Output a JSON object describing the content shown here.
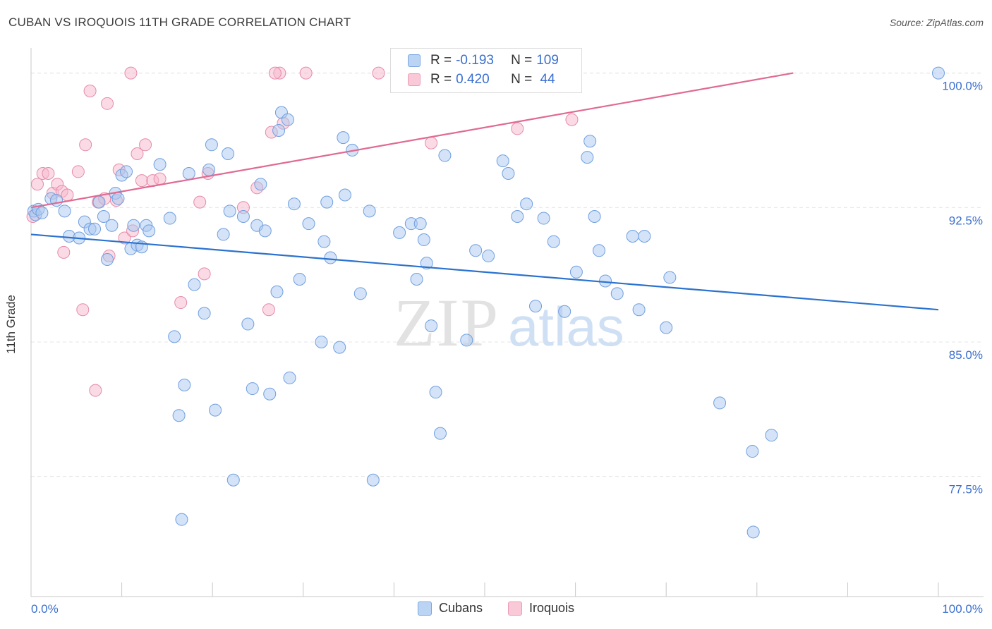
{
  "title": "CUBAN VS IROQUOIS 11TH GRADE CORRELATION CHART",
  "source": "Source: ZipAtlas.com",
  "watermark": {
    "zip": "ZIP",
    "atlas": "atlas"
  },
  "colors": {
    "cubans_fill": "#a9c7f0",
    "cubans_stroke": "#6f9fe0",
    "cubans_line": "#2b72cf",
    "iroquois_fill": "#f6b8cc",
    "iroquois_stroke": "#e88aa8",
    "iroquois_line": "#e06a92",
    "tick_label": "#3a6fd0",
    "grid": "#e4e4e4"
  },
  "legend": {
    "rows": [
      {
        "r_label": "R = ",
        "r_value": "-0.193",
        "n_label": "N = ",
        "n_value": "109"
      },
      {
        "r_label": "R = ",
        "r_value": "0.420",
        "n_label": "N = ",
        "n_value": " 44"
      }
    ]
  },
  "bottom_legend": {
    "cubans": "Cubans",
    "iroquois": "Iroquois"
  },
  "chart_data": {
    "type": "scatter",
    "title": "CUBAN VS IROQUOIS 11TH GRADE CORRELATION CHART",
    "xlabel": "",
    "ylabel": "11th Grade",
    "xlim": [
      0,
      100
    ],
    "ylim": [
      70.8,
      101.4
    ],
    "x_tick_labels": [
      "0.0%",
      "100.0%"
    ],
    "y_ticks": [
      77.5,
      85.0,
      92.5,
      100.0
    ],
    "y_tick_labels": [
      "77.5%",
      "85.0%",
      "92.5%",
      "100.0%"
    ],
    "grid": "horizontal dashed",
    "legend_position": "top-center",
    "series": [
      {
        "name": "Cubans",
        "trend": {
          "x": [
            0,
            100
          ],
          "y": [
            91.0,
            86.8
          ]
        },
        "points": [
          [
            0.3,
            92.3
          ],
          [
            0.5,
            92.1
          ],
          [
            0.8,
            92.4
          ],
          [
            1.2,
            92.2
          ],
          [
            2.2,
            93.0
          ],
          [
            2.8,
            92.9
          ],
          [
            3.7,
            92.3
          ],
          [
            4.2,
            90.9
          ],
          [
            5.3,
            90.8
          ],
          [
            5.9,
            91.7
          ],
          [
            6.5,
            91.3
          ],
          [
            7.0,
            91.3
          ],
          [
            7.5,
            92.8
          ],
          [
            8.0,
            92.0
          ],
          [
            8.4,
            89.6
          ],
          [
            8.9,
            91.5
          ],
          [
            9.3,
            93.3
          ],
          [
            9.6,
            93.0
          ],
          [
            10.0,
            94.3
          ],
          [
            10.5,
            94.5
          ],
          [
            11.0,
            90.2
          ],
          [
            11.3,
            91.5
          ],
          [
            11.7,
            90.4
          ],
          [
            12.2,
            90.3
          ],
          [
            12.7,
            91.5
          ],
          [
            13.0,
            91.2
          ],
          [
            14.2,
            94.9
          ],
          [
            15.3,
            91.9
          ],
          [
            15.8,
            85.3
          ],
          [
            16.3,
            80.9
          ],
          [
            16.6,
            75.1
          ],
          [
            16.9,
            82.6
          ],
          [
            17.4,
            94.4
          ],
          [
            18.0,
            88.2
          ],
          [
            19.1,
            86.6
          ],
          [
            19.6,
            94.6
          ],
          [
            19.9,
            96.0
          ],
          [
            20.3,
            81.2
          ],
          [
            21.2,
            91.0
          ],
          [
            21.7,
            95.5
          ],
          [
            21.9,
            92.3
          ],
          [
            22.3,
            77.3
          ],
          [
            23.4,
            92.0
          ],
          [
            23.9,
            86.0
          ],
          [
            24.4,
            82.4
          ],
          [
            24.9,
            91.5
          ],
          [
            25.3,
            93.8
          ],
          [
            25.8,
            91.2
          ],
          [
            26.3,
            82.1
          ],
          [
            27.1,
            87.8
          ],
          [
            27.3,
            96.8
          ],
          [
            27.6,
            97.8
          ],
          [
            28.3,
            97.4
          ],
          [
            28.5,
            83.0
          ],
          [
            29.0,
            92.7
          ],
          [
            29.6,
            88.5
          ],
          [
            30.6,
            91.6
          ],
          [
            32.0,
            85.0
          ],
          [
            32.3,
            90.6
          ],
          [
            32.6,
            92.8
          ],
          [
            33.0,
            89.7
          ],
          [
            34.0,
            84.7
          ],
          [
            34.4,
            96.4
          ],
          [
            34.6,
            93.2
          ],
          [
            35.4,
            95.7
          ],
          [
            36.3,
            87.7
          ],
          [
            37.3,
            92.3
          ],
          [
            37.7,
            77.3
          ],
          [
            40.6,
            91.1
          ],
          [
            41.9,
            91.6
          ],
          [
            42.5,
            88.5
          ],
          [
            42.9,
            91.6
          ],
          [
            43.3,
            90.7
          ],
          [
            43.6,
            89.4
          ],
          [
            44.1,
            85.9
          ],
          [
            44.6,
            82.2
          ],
          [
            45.1,
            79.9
          ],
          [
            45.6,
            95.4
          ],
          [
            48.0,
            85.1
          ],
          [
            49.0,
            90.1
          ],
          [
            50.4,
            89.8
          ],
          [
            52.0,
            95.1
          ],
          [
            52.6,
            94.4
          ],
          [
            53.6,
            92.0
          ],
          [
            54.6,
            92.7
          ],
          [
            55.6,
            87.0
          ],
          [
            56.5,
            91.9
          ],
          [
            57.6,
            90.6
          ],
          [
            58.8,
            86.7
          ],
          [
            60.1,
            88.9
          ],
          [
            61.3,
            95.3
          ],
          [
            61.6,
            96.2
          ],
          [
            62.1,
            92.0
          ],
          [
            62.6,
            90.1
          ],
          [
            63.3,
            88.4
          ],
          [
            64.6,
            87.7
          ],
          [
            66.3,
            90.9
          ],
          [
            67.0,
            86.8
          ],
          [
            67.6,
            90.9
          ],
          [
            70.0,
            85.8
          ],
          [
            70.4,
            88.6
          ],
          [
            75.9,
            81.6
          ],
          [
            79.5,
            78.9
          ],
          [
            79.6,
            74.4
          ],
          [
            81.6,
            79.8
          ],
          [
            100.0,
            100.0
          ]
        ]
      },
      {
        "name": "Iroquois",
        "trend": {
          "x": [
            0,
            84.0
          ],
          "y": [
            92.5,
            100.0
          ]
        },
        "points": [
          [
            0.2,
            92.0
          ],
          [
            0.7,
            93.8
          ],
          [
            1.3,
            94.4
          ],
          [
            1.9,
            94.4
          ],
          [
            2.4,
            93.3
          ],
          [
            2.9,
            93.8
          ],
          [
            3.4,
            93.4
          ],
          [
            3.6,
            90.0
          ],
          [
            4.0,
            93.2
          ],
          [
            5.2,
            94.5
          ],
          [
            5.7,
            86.8
          ],
          [
            6.0,
            96.0
          ],
          [
            6.5,
            99.0
          ],
          [
            7.1,
            82.3
          ],
          [
            7.4,
            92.8
          ],
          [
            8.1,
            93.0
          ],
          [
            8.4,
            98.3
          ],
          [
            8.6,
            89.8
          ],
          [
            9.4,
            92.9
          ],
          [
            9.7,
            94.6
          ],
          [
            10.3,
            90.8
          ],
          [
            11.2,
            91.2
          ],
          [
            11.7,
            95.5
          ],
          [
            12.2,
            94.0
          ],
          [
            12.6,
            96.0
          ],
          [
            13.4,
            94.0
          ],
          [
            14.2,
            94.1
          ],
          [
            16.5,
            87.2
          ],
          [
            18.6,
            92.8
          ],
          [
            19.1,
            88.8
          ],
          [
            19.5,
            94.4
          ],
          [
            23.4,
            92.5
          ],
          [
            24.9,
            93.6
          ],
          [
            26.2,
            86.8
          ],
          [
            26.5,
            96.7
          ],
          [
            27.4,
            100.0
          ],
          [
            27.8,
            97.2
          ],
          [
            11.0,
            100.0
          ],
          [
            26.9,
            100.0
          ],
          [
            30.3,
            100.0
          ],
          [
            38.3,
            100.0
          ],
          [
            44.1,
            96.1
          ],
          [
            53.6,
            96.9
          ],
          [
            59.6,
            97.4
          ]
        ]
      }
    ]
  }
}
